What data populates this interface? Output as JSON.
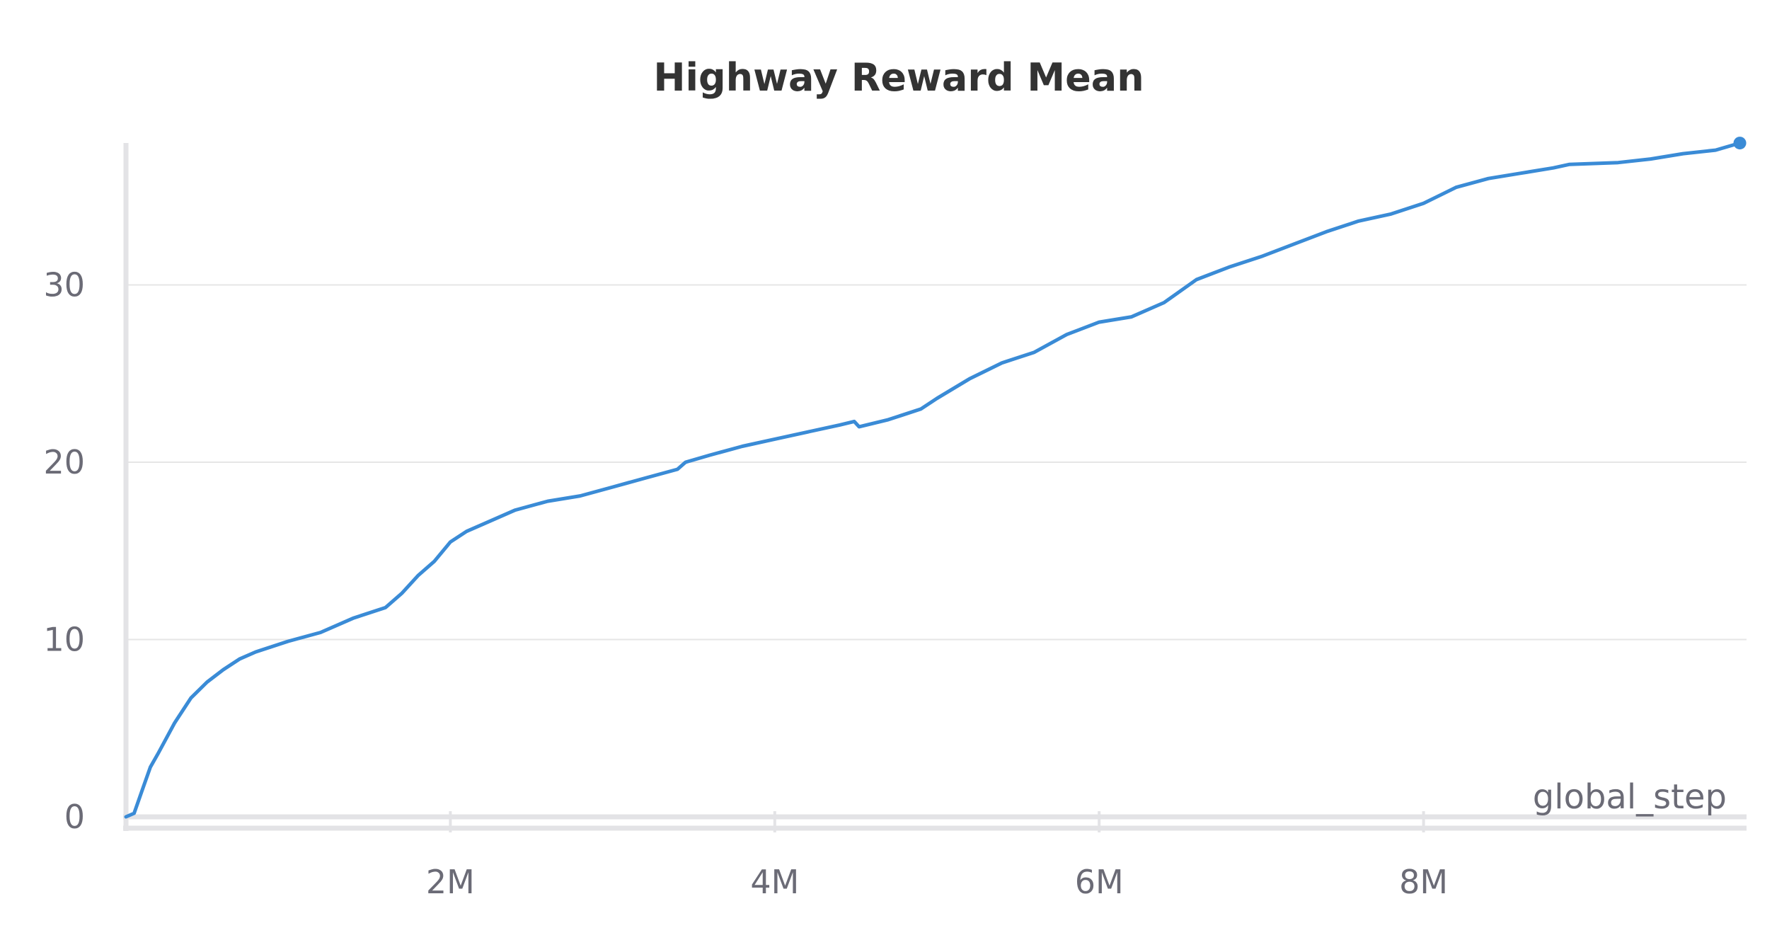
{
  "chart_data": {
    "type": "line",
    "title": "Highway Reward Mean",
    "xlabel": "global_step",
    "ylabel": "",
    "xlim": [
      0,
      10000000
    ],
    "ylim": [
      0,
      38
    ],
    "x_ticks": [
      {
        "value": 2000000,
        "label": "2M"
      },
      {
        "value": 4000000,
        "label": "4M"
      },
      {
        "value": 6000000,
        "label": "6M"
      },
      {
        "value": 8000000,
        "label": "8M"
      }
    ],
    "y_ticks": [
      {
        "value": 0,
        "label": "0"
      },
      {
        "value": 10,
        "label": "10"
      },
      {
        "value": 20,
        "label": "20"
      },
      {
        "value": 30,
        "label": "30"
      }
    ],
    "grid": true,
    "legend": "none",
    "color": "#3a8bd6",
    "series": [
      {
        "color": "#3a8bd6",
        "x": [
          0,
          50000,
          100000,
          150000,
          200000,
          300000,
          400000,
          500000,
          600000,
          700000,
          800000,
          900000,
          1000000,
          1200000,
          1400000,
          1600000,
          1700000,
          1800000,
          1900000,
          2000000,
          2100000,
          2200000,
          2400000,
          2600000,
          2800000,
          3000000,
          3200000,
          3400000,
          3450000,
          3600000,
          3800000,
          4000000,
          4200000,
          4400000,
          4490000,
          4520000,
          4700000,
          4900000,
          5000000,
          5200000,
          5400000,
          5600000,
          5800000,
          6000000,
          6200000,
          6400000,
          6600000,
          6800000,
          7000000,
          7200000,
          7400000,
          7600000,
          7800000,
          8000000,
          8200000,
          8400000,
          8600000,
          8800000,
          8900000,
          9200000,
          9400000,
          9600000,
          9800000,
          9950000
        ],
        "y": [
          0,
          0.2,
          1.5,
          2.8,
          3.6,
          5.3,
          6.7,
          7.6,
          8.3,
          8.9,
          9.3,
          9.6,
          9.9,
          10.4,
          11.2,
          11.8,
          12.6,
          13.6,
          14.4,
          15.5,
          16.1,
          16.5,
          17.3,
          17.8,
          18.1,
          18.6,
          19.1,
          19.6,
          20.0,
          20.4,
          20.9,
          21.3,
          21.7,
          22.1,
          22.3,
          22.0,
          22.4,
          23.0,
          23.6,
          24.7,
          25.6,
          26.2,
          27.2,
          27.9,
          28.2,
          29.0,
          30.3,
          31.0,
          31.6,
          32.3,
          33.0,
          33.6,
          34.0,
          34.6,
          35.5,
          36.0,
          36.3,
          36.6,
          36.8,
          36.9,
          37.1,
          37.4,
          37.6,
          38.0
        ]
      }
    ]
  }
}
